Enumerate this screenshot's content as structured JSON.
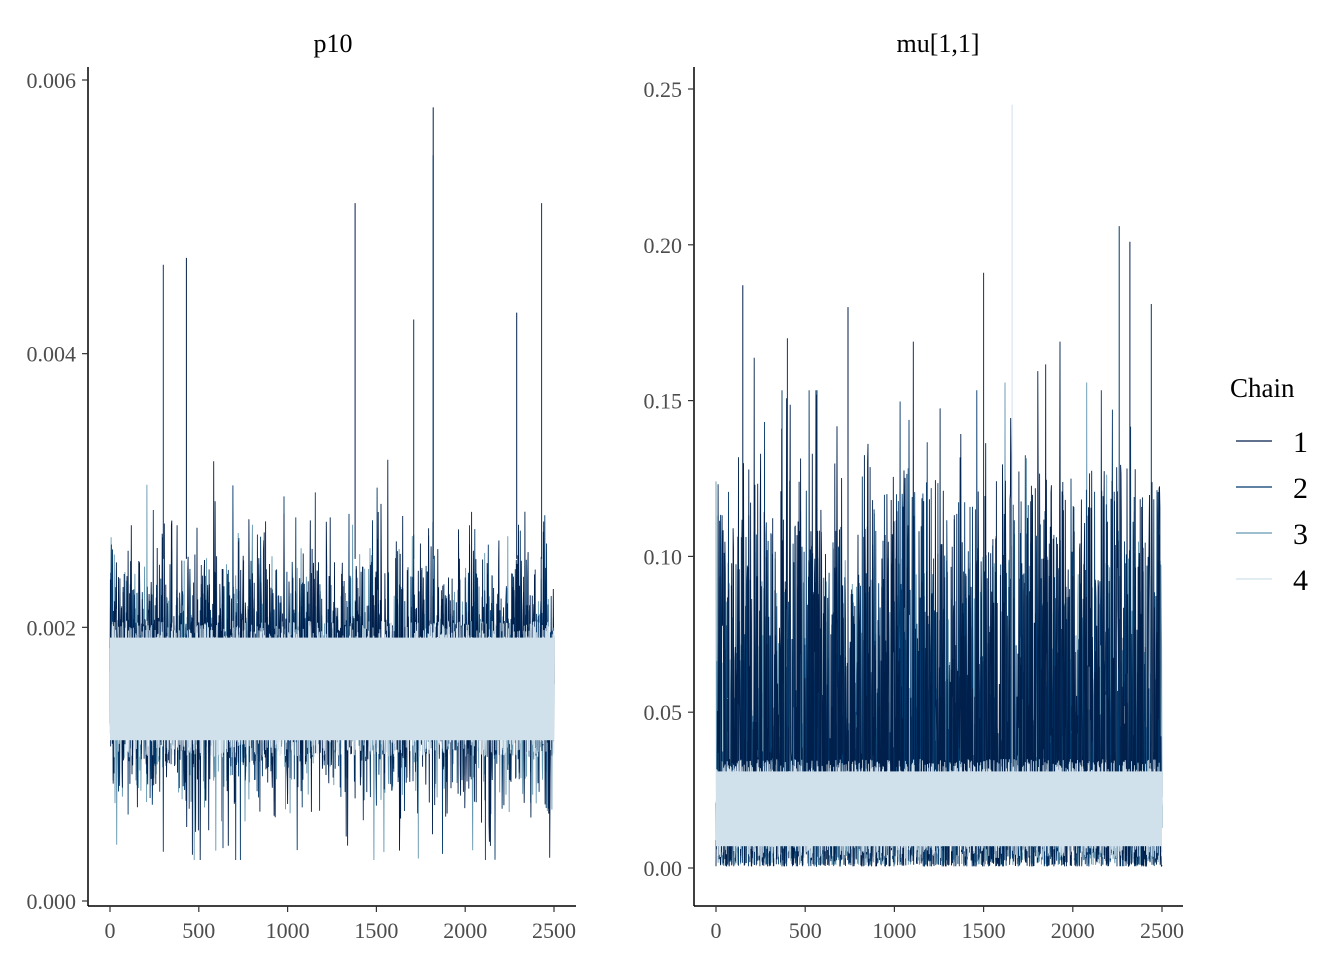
{
  "legend": {
    "title": "Chain",
    "entries": [
      {
        "label": "1",
        "color": "#011f4b"
      },
      {
        "label": "2",
        "color": "#03396c"
      },
      {
        "label": "3",
        "color": "#6497b1"
      },
      {
        "label": "4",
        "color": "#d1e1ec"
      }
    ],
    "position": "right"
  },
  "chart_data": [
    {
      "type": "line",
      "title": "p10",
      "xlabel": "",
      "ylabel": "",
      "xlim": [
        0,
        2500
      ],
      "ylim": [
        0,
        0.006
      ],
      "x_ticks": [
        0,
        500,
        1000,
        1500,
        2000,
        2500
      ],
      "x_tick_labels": [
        "0",
        "500",
        "1000",
        "1500",
        "2000",
        "2500"
      ],
      "y_ticks": [
        0,
        0.002,
        0.004,
        0.006
      ],
      "y_tick_labels": [
        "0.000",
        "0.002",
        "0.004",
        "0.006"
      ],
      "grid": false,
      "iterations": 2500,
      "band": {
        "center": 0.00155,
        "half_width": 0.0005
      },
      "series": [
        {
          "name": "1",
          "min": 0.0003,
          "max": 0.0058,
          "center": 0.00165,
          "spread": 0.0011
        },
        {
          "name": "2",
          "min": 0.0003,
          "max": 0.0047,
          "center": 0.00165,
          "spread": 0.00105
        },
        {
          "name": "3",
          "min": 0.0003,
          "max": 0.0051,
          "center": 0.0016,
          "spread": 0.0009
        },
        {
          "name": "4",
          "min": 0.0006,
          "max": 0.0038,
          "center": 0.00155,
          "spread": 0.0005
        }
      ],
      "spikes": [
        {
          "x": 1820,
          "y": 0.0058
        },
        {
          "x": 1820,
          "y": 0.00545
        },
        {
          "x": 1380,
          "y": 0.0051
        },
        {
          "x": 2430,
          "y": 0.0051
        },
        {
          "x": 430,
          "y": 0.0047
        },
        {
          "x": 300,
          "y": 0.00465
        },
        {
          "x": 2290,
          "y": 0.0043
        },
        {
          "x": 1710,
          "y": 0.00425
        }
      ]
    },
    {
      "type": "line",
      "title": "mu[1,1]",
      "xlabel": "",
      "ylabel": "",
      "xlim": [
        0,
        2500
      ],
      "ylim": [
        0,
        0.25
      ],
      "x_ticks": [
        0,
        500,
        1000,
        1500,
        2000,
        2500
      ],
      "x_tick_labels": [
        "0",
        "500",
        "1000",
        "1500",
        "2000",
        "2500"
      ],
      "y_ticks": [
        0,
        0.05,
        0.1,
        0.15,
        0.2,
        0.25
      ],
      "y_tick_labels": [
        "0.00",
        "0.05",
        "0.10",
        "0.15",
        "0.20",
        "0.25"
      ],
      "grid": false,
      "iterations": 2500,
      "band": {
        "center": 0.019,
        "half_width": 0.016
      },
      "series": [
        {
          "name": "1",
          "min": 0.0005,
          "max": 0.206,
          "center": 0.035,
          "spread": 0.06
        },
        {
          "name": "2",
          "min": 0.0005,
          "max": 0.187,
          "center": 0.03,
          "spread": 0.055
        },
        {
          "name": "3",
          "min": 0.001,
          "max": 0.19,
          "center": 0.025,
          "spread": 0.045
        },
        {
          "name": "4",
          "min": 0.002,
          "max": 0.245,
          "center": 0.018,
          "spread": 0.016
        }
      ],
      "spikes": [
        {
          "x": 1660,
          "y": 0.245
        },
        {
          "x": 2260,
          "y": 0.206
        },
        {
          "x": 2320,
          "y": 0.201
        },
        {
          "x": 1500,
          "y": 0.191
        },
        {
          "x": 150,
          "y": 0.187
        },
        {
          "x": 2440,
          "y": 0.181
        },
        {
          "x": 740,
          "y": 0.18
        },
        {
          "x": 400,
          "y": 0.17
        }
      ]
    }
  ]
}
